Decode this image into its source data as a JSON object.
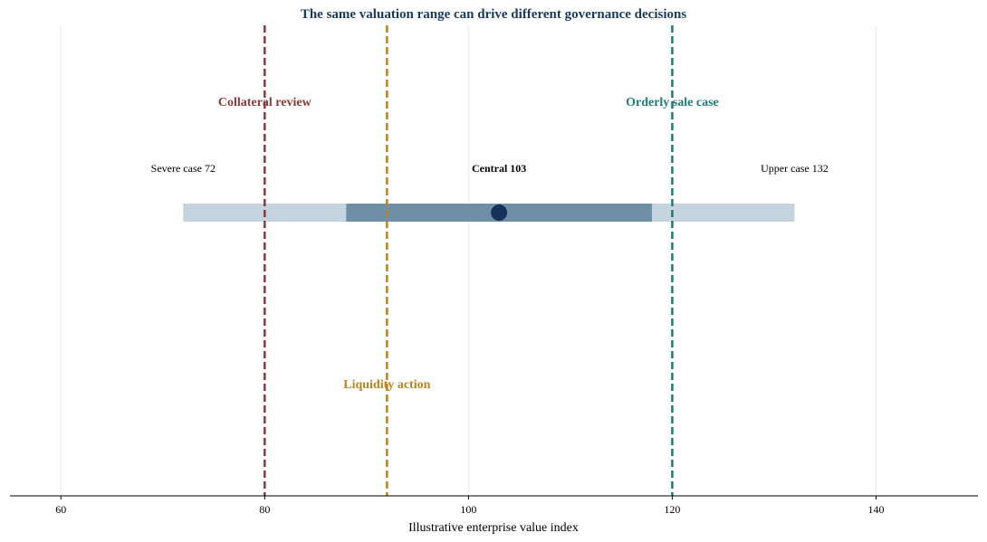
{
  "chart_data": {
    "type": "range",
    "title": "The same valuation range can drive different governance decisions",
    "xlabel": "Illustrative enterprise value index",
    "xlim": [
      55,
      150
    ],
    "xticks": [
      60,
      80,
      100,
      120,
      140
    ],
    "grid": "vertical",
    "range": {
      "outer": [
        72,
        132
      ],
      "inner": [
        88,
        118
      ],
      "central": 103
    },
    "case_labels": [
      {
        "text": "Severe case 72",
        "x": 72,
        "bold": false
      },
      {
        "text": "Central 103",
        "x": 103,
        "bold": true
      },
      {
        "text": "Upper case 132",
        "x": 132,
        "bold": false
      }
    ],
    "thresholds": [
      {
        "name": "Collateral review",
        "x": 80,
        "color": "#8b3a3a",
        "label_position": "upper"
      },
      {
        "name": "Liquidity action",
        "x": 92,
        "color": "#b8861b",
        "label_position": "lower"
      },
      {
        "name": "Orderly sale case",
        "x": 120,
        "color": "#1f7a78",
        "label_position": "upper"
      }
    ],
    "colors": {
      "title": "#1a3a5c",
      "outer_band": "#c6d4df",
      "inner_band": "#6e8fa6",
      "central_point": "#16325a"
    }
  }
}
